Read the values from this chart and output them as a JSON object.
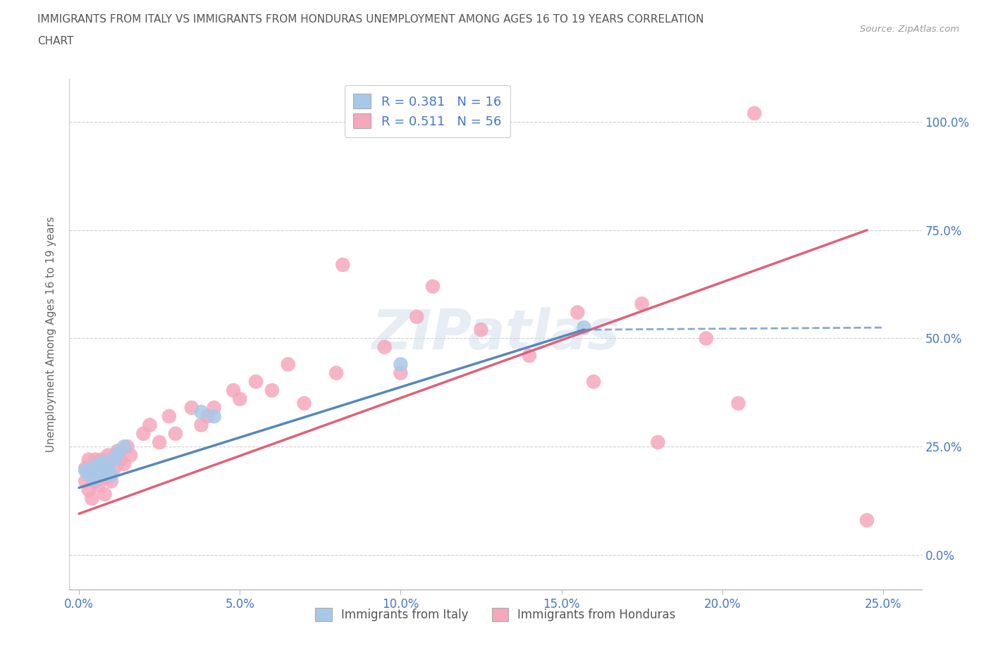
{
  "title_line1": "IMMIGRANTS FROM ITALY VS IMMIGRANTS FROM HONDURAS UNEMPLOYMENT AMONG AGES 16 TO 19 YEARS CORRELATION",
  "title_line2": "CHART",
  "source": "Source: ZipAtlas.com",
  "ylabel": "Unemployment Among Ages 16 to 19 years",
  "xlim": [
    -0.003,
    0.262
  ],
  "ylim": [
    -0.08,
    1.1
  ],
  "ytick_vals": [
    0.0,
    0.25,
    0.5,
    0.75,
    1.0
  ],
  "xtick_vals": [
    0.0,
    0.05,
    0.1,
    0.15,
    0.2,
    0.25
  ],
  "italy_scatter_color": "#a8c8e8",
  "honduras_scatter_color": "#f5a8bc",
  "italy_line_color": "#5588bb",
  "honduras_line_color": "#e0607a",
  "label_color": "#4477cc",
  "R_italy": 0.381,
  "N_italy": 16,
  "R_honduras": 0.511,
  "N_honduras": 56,
  "italy_label": "Immigrants from Italy",
  "honduras_label": "Immigrants from Honduras",
  "watermark": "ZIPatlas",
  "bg_color": "#ffffff",
  "grid_color": "#cccccc",
  "italy_x": [
    0.002,
    0.003,
    0.004,
    0.005,
    0.006,
    0.007,
    0.008,
    0.009,
    0.01,
    0.011,
    0.012,
    0.014,
    0.038,
    0.042,
    0.1,
    0.157
  ],
  "italy_y": [
    0.195,
    0.185,
    0.2,
    0.175,
    0.21,
    0.19,
    0.215,
    0.195,
    0.185,
    0.22,
    0.235,
    0.25,
    0.33,
    0.32,
    0.44,
    0.525
  ],
  "honduras_x": [
    0.002,
    0.002,
    0.003,
    0.003,
    0.004,
    0.004,
    0.005,
    0.005,
    0.005,
    0.006,
    0.006,
    0.007,
    0.007,
    0.008,
    0.008,
    0.009,
    0.009,
    0.01,
    0.01,
    0.011,
    0.012,
    0.013,
    0.014,
    0.015,
    0.016,
    0.02,
    0.022,
    0.025,
    0.028,
    0.03,
    0.035,
    0.038,
    0.04,
    0.042,
    0.048,
    0.05,
    0.055,
    0.06,
    0.065,
    0.07,
    0.08,
    0.082,
    0.095,
    0.1,
    0.105,
    0.11,
    0.125,
    0.14,
    0.155,
    0.16,
    0.175,
    0.18,
    0.195,
    0.205,
    0.21,
    0.245
  ],
  "honduras_y": [
    0.17,
    0.2,
    0.15,
    0.22,
    0.18,
    0.13,
    0.2,
    0.17,
    0.22,
    0.16,
    0.21,
    0.18,
    0.22,
    0.14,
    0.2,
    0.18,
    0.23,
    0.17,
    0.22,
    0.2,
    0.24,
    0.22,
    0.21,
    0.25,
    0.23,
    0.28,
    0.3,
    0.26,
    0.32,
    0.28,
    0.34,
    0.3,
    0.32,
    0.34,
    0.38,
    0.36,
    0.4,
    0.38,
    0.44,
    0.35,
    0.42,
    0.67,
    0.48,
    0.42,
    0.55,
    0.62,
    0.52,
    0.46,
    0.56,
    0.4,
    0.58,
    0.26,
    0.5,
    0.35,
    1.02,
    0.08
  ],
  "italy_line_x0": 0.0,
  "italy_line_y0": 0.155,
  "italy_line_x1": 0.157,
  "italy_line_y1": 0.52,
  "italy_line_xd": 0.25,
  "italy_line_yd": 0.525,
  "honduras_line_x0": 0.0,
  "honduras_line_y0": 0.095,
  "honduras_line_x1": 0.245,
  "honduras_line_y1": 0.75
}
